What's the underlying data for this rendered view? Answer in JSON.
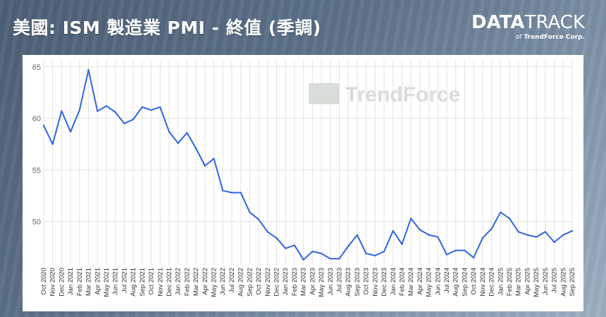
{
  "header": {
    "title": "美國: ISM 製造業 PMI - 終值 (季調)",
    "brand_main_bold": "DATA",
    "brand_main_thin": "TRACK",
    "brand_sub_prefix": "of ",
    "brand_sub_name": "TrendForce Corp."
  },
  "watermark": "TrendForce",
  "chart_data": {
    "type": "line",
    "title": "美國: ISM 製造業 PMI - 終值 (季調)",
    "xlabel": "",
    "ylabel": "",
    "ylim": [
      45.8,
      65.6
    ],
    "yticks": [
      50,
      55,
      60,
      65
    ],
    "grid": true,
    "color": "#2f66dd",
    "x": [
      "Oct 2020",
      "Nov 2020",
      "Dec 2020",
      "Jan 2021",
      "Feb 2021",
      "Mar 2021",
      "Apr 2021",
      "May 2021",
      "Jun 2021",
      "Jul 2021",
      "Aug 2021",
      "Sep 2021",
      "Oct 2021",
      "Nov 2021",
      "Dec 2021",
      "Jan 2022",
      "Feb 2022",
      "Mar 2022",
      "Apr 2022",
      "May 2022",
      "Jun 2022",
      "Jul 2022",
      "Aug 2022",
      "Sep 2022",
      "Oct 2022",
      "Nov 2022",
      "Dec 2022",
      "Jan 2023",
      "Feb 2023",
      "Mar 2023",
      "Apr 2023",
      "May 2023",
      "Jun 2023",
      "Jul 2023",
      "Aug 2023",
      "Sep 2023",
      "Oct 2023",
      "Nov 2023",
      "Dec 2023",
      "Jan 2024",
      "Feb 2024",
      "Mar 2024",
      "Apr 2024",
      "May 2024",
      "Jun 2024",
      "Jul 2024",
      "Aug 2024",
      "Sep 2024",
      "Oct 2024",
      "Nov 2024",
      "Dec 2024",
      "Jan 2025",
      "Feb 2025",
      "Mar 2025",
      "Apr 2025",
      "May 2025",
      "Jun 2025",
      "Jul 2025",
      "Aug 2025",
      "Sep 2025"
    ],
    "series": [
      {
        "values": [
          59.3,
          57.5,
          60.7,
          58.7,
          60.8,
          64.7,
          60.7,
          61.2,
          60.6,
          59.5,
          59.9,
          61.1,
          60.8,
          61.1,
          58.7,
          57.6,
          58.6,
          57.1,
          55.4,
          56.1,
          53.0,
          52.8,
          52.8,
          50.9,
          50.2,
          49.0,
          48.4,
          47.4,
          47.7,
          46.3,
          47.1,
          46.9,
          46.4,
          46.4,
          47.6,
          48.7,
          46.9,
          46.7,
          47.1,
          49.1,
          47.8,
          50.3,
          49.2,
          48.7,
          48.5,
          46.8,
          47.2,
          47.2,
          46.5,
          48.4,
          49.3,
          50.9,
          50.3,
          49.0,
          48.7,
          48.5,
          49.0,
          48.0,
          48.7,
          49.1
        ]
      }
    ]
  }
}
